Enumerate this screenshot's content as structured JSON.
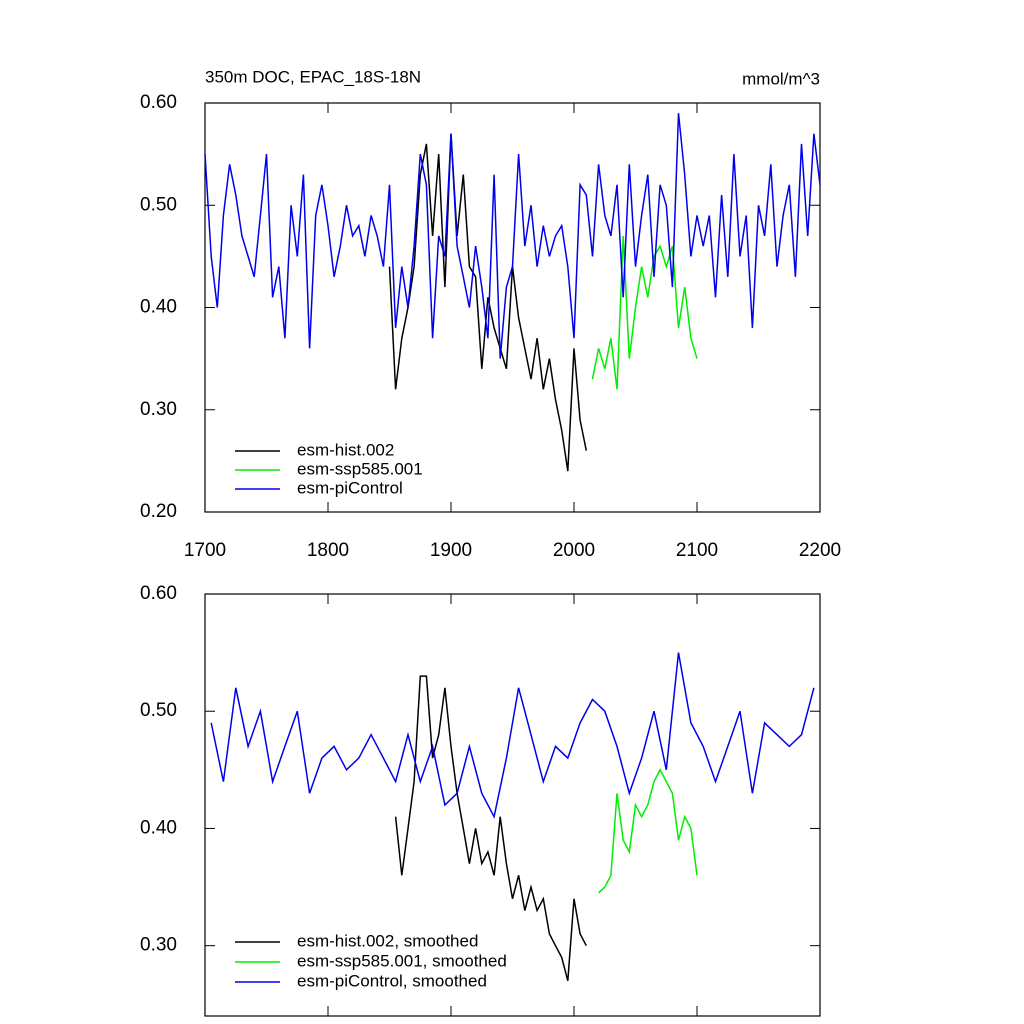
{
  "chart_data": [
    {
      "type": "line",
      "title": "350m DOC, EPAC_18S-18N",
      "units": "mmol/m^3",
      "xlim": [
        1700,
        2200
      ],
      "xticks": [
        1700,
        1800,
        1900,
        2000,
        2100,
        2200
      ],
      "ylim": [
        0.2,
        0.6
      ],
      "yticks": [
        {
          "value": 0.2,
          "label": "0.20"
        },
        {
          "value": 0.3,
          "label": "0.30"
        },
        {
          "value": 0.4,
          "label": "0.40"
        },
        {
          "value": 0.5,
          "label": "0.50"
        },
        {
          "value": 0.6,
          "label": "0.60"
        }
      ],
      "series": [
        {
          "name": "esm-hist.002",
          "color": "#000000",
          "x": [
            1850,
            1855,
            1860,
            1865,
            1870,
            1875,
            1880,
            1885,
            1890,
            1895,
            1900,
            1905,
            1910,
            1915,
            1920,
            1925,
            1930,
            1935,
            1940,
            1945,
            1950,
            1955,
            1960,
            1965,
            1970,
            1975,
            1980,
            1985,
            1990,
            1995,
            2000,
            2005,
            2010
          ],
          "values": [
            0.44,
            0.32,
            0.37,
            0.4,
            0.44,
            0.53,
            0.56,
            0.47,
            0.55,
            0.42,
            0.57,
            0.47,
            0.53,
            0.44,
            0.43,
            0.34,
            0.41,
            0.38,
            0.36,
            0.34,
            0.44,
            0.39,
            0.36,
            0.33,
            0.37,
            0.32,
            0.35,
            0.31,
            0.28,
            0.24,
            0.36,
            0.29,
            0.26
          ]
        },
        {
          "name": "esm-ssp585.001",
          "color": "#00ee00",
          "x": [
            2015,
            2020,
            2025,
            2030,
            2035,
            2040,
            2045,
            2050,
            2055,
            2060,
            2065,
            2070,
            2075,
            2080,
            2085,
            2090,
            2095,
            2100
          ],
          "values": [
            0.33,
            0.36,
            0.34,
            0.37,
            0.32,
            0.47,
            0.35,
            0.4,
            0.44,
            0.41,
            0.45,
            0.46,
            0.44,
            0.46,
            0.38,
            0.42,
            0.37,
            0.35
          ]
        },
        {
          "name": "esm-piControl",
          "color": "#0000ee",
          "x": [
            1700,
            1705,
            1710,
            1715,
            1720,
            1725,
            1730,
            1735,
            1740,
            1745,
            1750,
            1755,
            1760,
            1765,
            1770,
            1775,
            1780,
            1785,
            1790,
            1795,
            1800,
            1805,
            1810,
            1815,
            1820,
            1825,
            1830,
            1835,
            1840,
            1845,
            1850,
            1855,
            1860,
            1865,
            1870,
            1875,
            1880,
            1885,
            1890,
            1895,
            1900,
            1905,
            1910,
            1915,
            1920,
            1925,
            1930,
            1935,
            1940,
            1945,
            1950,
            1955,
            1960,
            1965,
            1970,
            1975,
            1980,
            1985,
            1990,
            1995,
            2000,
            2005,
            2010,
            2015,
            2020,
            2025,
            2030,
            2035,
            2040,
            2045,
            2050,
            2055,
            2060,
            2065,
            2070,
            2075,
            2080,
            2085,
            2090,
            2095,
            2100,
            2105,
            2110,
            2115,
            2120,
            2125,
            2130,
            2135,
            2140,
            2145,
            2150,
            2155,
            2160,
            2165,
            2170,
            2175,
            2180,
            2185,
            2190,
            2195,
            2200
          ],
          "values": [
            0.55,
            0.45,
            0.4,
            0.49,
            0.54,
            0.51,
            0.47,
            0.45,
            0.43,
            0.49,
            0.55,
            0.41,
            0.44,
            0.37,
            0.5,
            0.45,
            0.53,
            0.36,
            0.49,
            0.52,
            0.48,
            0.43,
            0.46,
            0.5,
            0.47,
            0.48,
            0.45,
            0.49,
            0.47,
            0.44,
            0.52,
            0.38,
            0.44,
            0.4,
            0.46,
            0.55,
            0.52,
            0.37,
            0.47,
            0.45,
            0.57,
            0.46,
            0.43,
            0.4,
            0.46,
            0.42,
            0.37,
            0.53,
            0.35,
            0.42,
            0.44,
            0.55,
            0.46,
            0.5,
            0.44,
            0.48,
            0.45,
            0.47,
            0.48,
            0.44,
            0.37,
            0.52,
            0.51,
            0.45,
            0.54,
            0.49,
            0.47,
            0.52,
            0.41,
            0.54,
            0.44,
            0.49,
            0.53,
            0.43,
            0.52,
            0.5,
            0.42,
            0.59,
            0.53,
            0.45,
            0.49,
            0.46,
            0.49,
            0.41,
            0.51,
            0.43,
            0.55,
            0.45,
            0.49,
            0.38,
            0.5,
            0.47,
            0.54,
            0.44,
            0.49,
            0.52,
            0.43,
            0.56,
            0.47,
            0.57,
            0.52
          ]
        }
      ]
    },
    {
      "type": "line",
      "xlim": [
        1700,
        2200
      ],
      "xticks": [
        1700,
        1800,
        1900,
        2000,
        2100,
        2200
      ],
      "ylim": [
        0.24,
        0.6
      ],
      "yticks": [
        {
          "value": 0.3,
          "label": "0.30"
        },
        {
          "value": 0.4,
          "label": "0.40"
        },
        {
          "value": 0.5,
          "label": "0.50"
        },
        {
          "value": 0.6,
          "label": "0.60"
        }
      ],
      "series": [
        {
          "name": "esm-hist.002, smoothed",
          "color": "#000000",
          "x": [
            1855,
            1860,
            1865,
            1870,
            1875,
            1880,
            1885,
            1890,
            1895,
            1900,
            1905,
            1910,
            1915,
            1920,
            1925,
            1930,
            1935,
            1940,
            1945,
            1950,
            1955,
            1960,
            1965,
            1970,
            1975,
            1980,
            1985,
            1990,
            1995,
            2000,
            2005,
            2010
          ],
          "values": [
            0.41,
            0.36,
            0.4,
            0.44,
            0.53,
            0.53,
            0.46,
            0.48,
            0.52,
            0.47,
            0.43,
            0.4,
            0.37,
            0.4,
            0.37,
            0.38,
            0.36,
            0.41,
            0.37,
            0.34,
            0.36,
            0.33,
            0.35,
            0.33,
            0.34,
            0.31,
            0.3,
            0.29,
            0.27,
            0.34,
            0.31,
            0.3
          ]
        },
        {
          "name": "esm-ssp585.001, smoothed",
          "color": "#00ee00",
          "x": [
            2020,
            2025,
            2030,
            2035,
            2040,
            2045,
            2050,
            2055,
            2060,
            2065,
            2070,
            2075,
            2080,
            2085,
            2090,
            2095,
            2100
          ],
          "values": [
            0.345,
            0.35,
            0.36,
            0.43,
            0.39,
            0.38,
            0.42,
            0.41,
            0.42,
            0.44,
            0.45,
            0.44,
            0.43,
            0.39,
            0.41,
            0.4,
            0.36
          ]
        },
        {
          "name": "esm-piControl, smoothed",
          "color": "#0000ee",
          "x": [
            1705,
            1715,
            1725,
            1735,
            1745,
            1755,
            1765,
            1775,
            1785,
            1795,
            1805,
            1815,
            1825,
            1835,
            1845,
            1855,
            1865,
            1875,
            1885,
            1895,
            1905,
            1915,
            1925,
            1935,
            1945,
            1955,
            1965,
            1975,
            1985,
            1995,
            2005,
            2015,
            2025,
            2035,
            2045,
            2055,
            2065,
            2075,
            2085,
            2095,
            2105,
            2115,
            2125,
            2135,
            2145,
            2155,
            2165,
            2175,
            2185,
            2195
          ],
          "values": [
            0.49,
            0.44,
            0.52,
            0.47,
            0.5,
            0.44,
            0.47,
            0.5,
            0.43,
            0.46,
            0.47,
            0.45,
            0.46,
            0.48,
            0.46,
            0.44,
            0.48,
            0.44,
            0.47,
            0.42,
            0.43,
            0.47,
            0.43,
            0.41,
            0.46,
            0.52,
            0.48,
            0.44,
            0.47,
            0.46,
            0.49,
            0.51,
            0.5,
            0.47,
            0.43,
            0.46,
            0.5,
            0.45,
            0.55,
            0.49,
            0.47,
            0.44,
            0.47,
            0.5,
            0.43,
            0.49,
            0.48,
            0.47,
            0.48,
            0.52
          ]
        }
      ]
    }
  ]
}
